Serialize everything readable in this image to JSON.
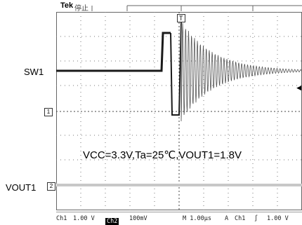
{
  "header": {
    "brand": "Tek",
    "state": "停止"
  },
  "labels": {
    "sw1": "SW1",
    "vout1": "VOUT1"
  },
  "markers": {
    "ch1": "1",
    "ch2": "2",
    "trigger": "T"
  },
  "annotation": "VCC=3.3V,Ta=25℃,VOUT1=1.8V",
  "status": {
    "ch1_label": "Ch1",
    "ch1_scale": "1.00 V",
    "ch2_label": "Ch2",
    "ch2_scale": "100mV",
    "timebase": "M 1.00µs",
    "trigger_mode": "A",
    "trigger_source": "Ch1",
    "trigger_slope": "∫",
    "trigger_level": "1.00 V"
  },
  "colors": {
    "trace_ch1": "#1a1a1a",
    "trace_ch2": "#c8c8c8",
    "grid": "#555555"
  }
}
